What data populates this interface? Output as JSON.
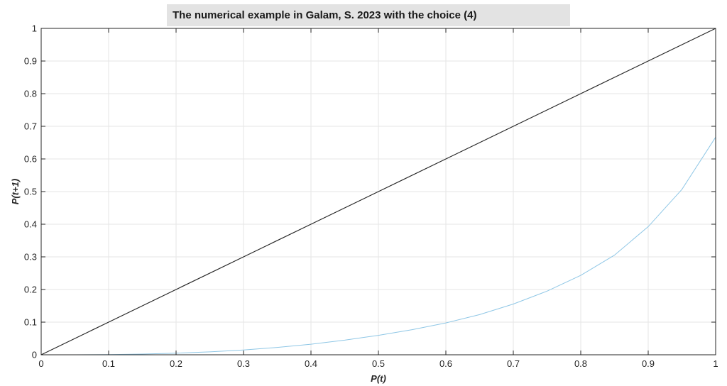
{
  "chart_data": {
    "type": "line",
    "title": "The numerical example in Galam, S. 2023 with the choice (4)",
    "xlabel": "P(t)",
    "ylabel": "P(t+1)",
    "xlim": [
      0,
      1
    ],
    "ylim": [
      0,
      1
    ],
    "grid": true,
    "x_ticks": [
      "0",
      "0.1",
      "0.2",
      "0.3",
      "0.4",
      "0.5",
      "0.6",
      "0.7",
      "0.8",
      "0.9",
      "1"
    ],
    "y_ticks": [
      "0",
      "0.1",
      "0.2",
      "0.3",
      "0.4",
      "0.5",
      "0.6",
      "0.7",
      "0.8",
      "0.9",
      "1"
    ],
    "series": [
      {
        "color": "#262626",
        "x": [
          0,
          0.1,
          0.2,
          0.3,
          0.4,
          0.5,
          0.6,
          0.7,
          0.8,
          0.9,
          1.0
        ],
        "y": [
          0,
          0.1,
          0.2,
          0.3,
          0.4,
          0.5,
          0.6,
          0.7,
          0.8,
          0.9,
          1.0
        ]
      },
      {
        "color": "#8fc7e6",
        "x": [
          0,
          0.05,
          0.1,
          0.15,
          0.2,
          0.25,
          0.3,
          0.35,
          0.4,
          0.45,
          0.5,
          0.55,
          0.6,
          0.65,
          0.7,
          0.75,
          0.8,
          0.85,
          0.9,
          0.95,
          1.0
        ],
        "y": [
          0,
          0.0001,
          0.0007,
          0.0022,
          0.0048,
          0.0089,
          0.0147,
          0.0225,
          0.0325,
          0.0448,
          0.0595,
          0.077,
          0.0976,
          0.1231,
          0.1555,
          0.195,
          0.2432,
          0.3052,
          0.3925,
          0.5068,
          0.6667
        ]
      }
    ]
  }
}
